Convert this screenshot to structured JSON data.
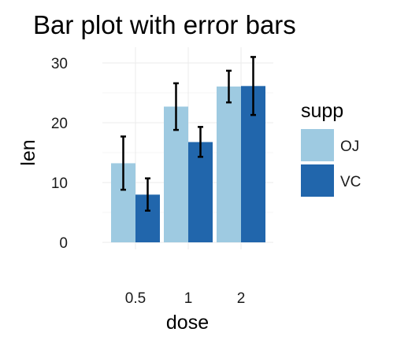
{
  "chart_data": {
    "type": "bar",
    "title": "Bar plot with error bars",
    "xlabel": "dose",
    "ylabel": "len",
    "categories": [
      "0.5",
      "1",
      "2"
    ],
    "ylim": [
      0,
      32
    ],
    "yticks": [
      0,
      10,
      20,
      30
    ],
    "grid": true,
    "legend": {
      "title": "supp",
      "position": "right"
    },
    "series": [
      {
        "name": "OJ",
        "color": "#9ecae1",
        "values": [
          13.23,
          22.7,
          26.06
        ],
        "err_low": [
          8.8,
          18.8,
          23.4
        ],
        "err_high": [
          17.7,
          26.6,
          28.7
        ]
      },
      {
        "name": "VC",
        "color": "#2166ac",
        "values": [
          7.98,
          16.77,
          26.14
        ],
        "err_low": [
          5.3,
          14.3,
          21.3
        ],
        "err_high": [
          10.7,
          19.3,
          31.0
        ]
      }
    ]
  }
}
